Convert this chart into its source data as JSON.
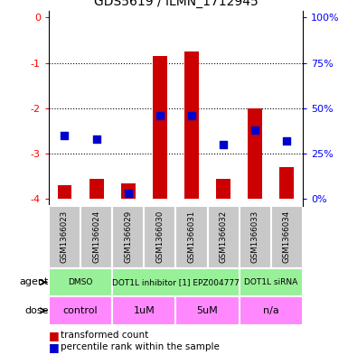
{
  "title": "GDS5619 / ILMN_1712945",
  "samples": [
    "GSM1366023",
    "GSM1366024",
    "GSM1366029",
    "GSM1366030",
    "GSM1366031",
    "GSM1366032",
    "GSM1366033",
    "GSM1366034"
  ],
  "transformed_counts": [
    -3.7,
    -3.55,
    -3.65,
    -0.85,
    -0.75,
    -3.55,
    -2.0,
    -3.3
  ],
  "percentile_ranks": [
    35,
    33,
    3,
    46,
    46,
    30,
    38,
    32
  ],
  "ylim": [
    -4.15,
    0.15
  ],
  "yticks": [
    0,
    -1,
    -2,
    -3,
    -4
  ],
  "right_ytick_values": [
    100,
    75,
    50,
    25,
    0
  ],
  "agent_groups": [
    {
      "label": "DMSO",
      "start": 0,
      "end": 2,
      "color": "#98F098"
    },
    {
      "label": "DOT1L inhibitor [1] EPZ004777",
      "start": 2,
      "end": 6,
      "color": "#98F098"
    },
    {
      "label": "DOT1L siRNA",
      "start": 6,
      "end": 8,
      "color": "#98F098"
    }
  ],
  "dose_groups": [
    {
      "label": "control",
      "start": 0,
      "end": 2,
      "color": "#FF88FF"
    },
    {
      "label": "1uM",
      "start": 2,
      "end": 4,
      "color": "#FF88FF"
    },
    {
      "label": "5uM",
      "start": 4,
      "end": 6,
      "color": "#FF88FF"
    },
    {
      "label": "n/a",
      "start": 6,
      "end": 8,
      "color": "#FF88FF"
    }
  ],
  "bar_color": "#CC0000",
  "dot_color": "#0000CC",
  "bar_width": 0.45,
  "dot_size": 40,
  "sample_bg_color": "#C8C8C8",
  "cell_edge_color": "#FFFFFF"
}
